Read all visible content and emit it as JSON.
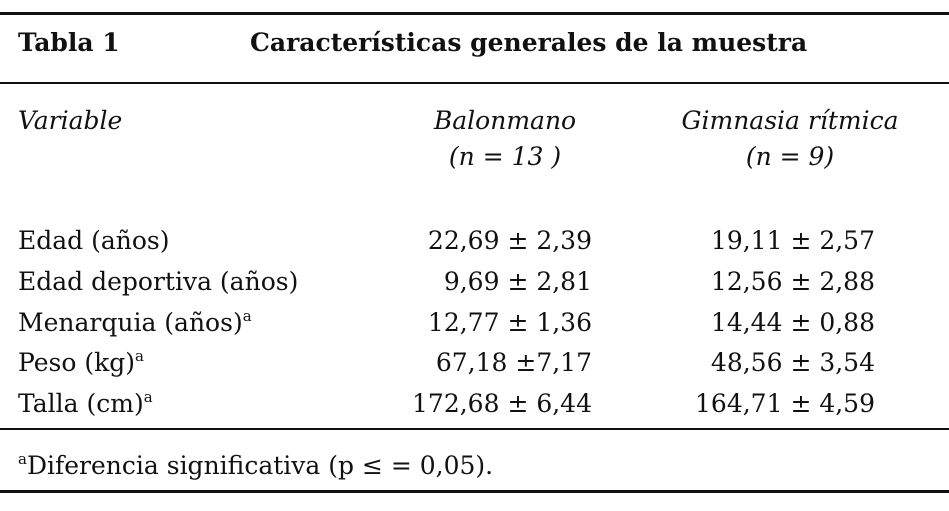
{
  "header": {
    "label": "Tabla 1",
    "title": "Características generales de la muestra"
  },
  "table": {
    "columns": [
      {
        "name": "Variable"
      },
      {
        "name": "Balonmano",
        "sub": "(n = 13 )"
      },
      {
        "name": "Gimnasia rítmica",
        "sub": "(n = 9)"
      }
    ],
    "rows": [
      {
        "label": "Edad (años)",
        "cells": [
          "22,69 ± 2,39",
          "19,11 ± 2,57"
        ]
      },
      {
        "label": "Edad deportiva (años)",
        "cells": [
          "9,69 ± 2,81",
          "12,56 ± 2,88"
        ]
      },
      {
        "label": "Menarquia (años)",
        "note": "a",
        "cells": [
          "12,77 ± 1,36",
          "14,44 ± 0,88"
        ]
      },
      {
        "label": "Peso (kg)",
        "note": "a",
        "cells": [
          "67,18 ±7,17",
          "48,56 ± 3,54"
        ]
      },
      {
        "label": "Talla (cm)",
        "note": "a",
        "cells": [
          "172,68 ± 6,44",
          "164,71 ± 4,59"
        ]
      }
    ]
  },
  "footnote": {
    "mark": "a",
    "text": "Diferencia significativa (p ≤ = 0,05)."
  }
}
